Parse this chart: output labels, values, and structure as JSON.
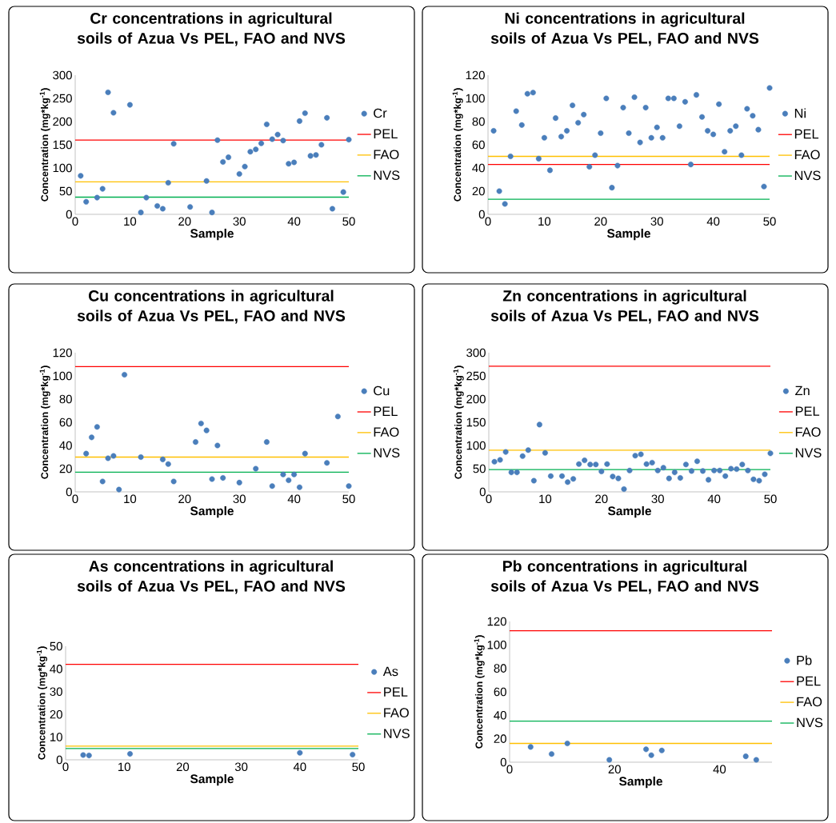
{
  "chart_data": [
    {
      "type": "scatter",
      "title": "Cr concentrations in agricultural soils of Azua Vs PEL, FAO and NVS",
      "xlabel": "Sample",
      "ylabel": "Concentration (mg*kg$^{-1}$)",
      "xlim": [
        0,
        50
      ],
      "xticks": [
        0,
        10,
        20,
        30,
        40,
        50
      ],
      "ylim": [
        0,
        300
      ],
      "yticks": [
        0,
        50,
        100,
        150,
        200,
        250,
        300
      ],
      "legend": "right",
      "marker": "circle",
      "series": [
        {
          "name": "Cr",
          "color": "#4a7ebb",
          "x": [
            1,
            2,
            4,
            5,
            6,
            7,
            10,
            12,
            13,
            15,
            16,
            17,
            18,
            21,
            24,
            25,
            26,
            27,
            28,
            30,
            31,
            32,
            33,
            34,
            35,
            36,
            37,
            38,
            39,
            40,
            41,
            42,
            43,
            44,
            45,
            46,
            47,
            49,
            50
          ],
          "values": [
            83,
            27,
            36,
            55,
            263,
            219,
            236,
            4,
            36,
            18,
            12,
            68,
            152,
            16,
            72,
            4,
            160,
            113,
            123,
            87,
            103,
            135,
            140,
            153,
            194,
            162,
            172,
            159,
            109,
            112,
            201,
            218,
            126,
            128,
            150,
            208,
            12,
            48,
            161
          ]
        }
      ],
      "ref_lines": [
        {
          "axis": "y",
          "value": 160,
          "label": "PEL",
          "color": "#ff0000"
        },
        {
          "axis": "y",
          "value": 70,
          "label": "FAO",
          "color": "#ffc000"
        },
        {
          "axis": "y",
          "value": 37,
          "label": "NVS",
          "color": "#00b050"
        }
      ]
    },
    {
      "type": "scatter",
      "title": "Ni concentrations in agricultural soils of Azua Vs PEL, FAO and NVS",
      "xlabel": "Sample",
      "ylabel": "Concentration (mg*kg$^{-1}$)",
      "xlim": [
        0,
        50
      ],
      "xticks": [
        0,
        10,
        20,
        30,
        40,
        50
      ],
      "ylim": [
        0,
        120
      ],
      "yticks": [
        0,
        20,
        40,
        60,
        80,
        100,
        120
      ],
      "legend": "right",
      "marker": "circle",
      "series": [
        {
          "name": "Ni",
          "color": "#4a7ebb",
          "x": [
            1,
            2,
            3,
            4,
            5,
            6,
            7,
            8,
            9,
            10,
            11,
            12,
            13,
            14,
            15,
            16,
            17,
            18,
            19,
            20,
            21,
            22,
            23,
            24,
            25,
            26,
            27,
            28,
            29,
            30,
            31,
            32,
            33,
            34,
            35,
            36,
            37,
            38,
            39,
            40,
            41,
            42,
            43,
            44,
            45,
            46,
            47,
            48,
            49,
            50
          ],
          "values": [
            72,
            20,
            9,
            50,
            89,
            77,
            104,
            105,
            48,
            66,
            38,
            83,
            67,
            72,
            94,
            79,
            86,
            41,
            51,
            70,
            100,
            23,
            42,
            92,
            70,
            101,
            62,
            92,
            66,
            75,
            66,
            100,
            100,
            76,
            97,
            43,
            103,
            84,
            72,
            69,
            95,
            54,
            72,
            76,
            51,
            91,
            85,
            73,
            24,
            109
          ]
        }
      ],
      "ref_lines": [
        {
          "axis": "y",
          "value": 43,
          "label": "PEL",
          "color": "#ff0000"
        },
        {
          "axis": "y",
          "value": 50,
          "label": "FAO",
          "color": "#ffc000"
        },
        {
          "axis": "y",
          "value": 13,
          "label": "NVS",
          "color": "#00b050"
        }
      ]
    },
    {
      "type": "scatter",
      "title": "Cu concentrations in agricultural soils of Azua Vs PEL, FAO and NVS",
      "xlabel": "Sample",
      "ylabel": "Concentration (mg*kg$^{-1}$)",
      "xlim": [
        0,
        50
      ],
      "xticks": [
        0,
        10,
        20,
        30,
        40,
        50
      ],
      "ylim": [
        0,
        120
      ],
      "yticks": [
        0,
        20,
        40,
        60,
        80,
        100,
        120
      ],
      "legend": "right",
      "marker": "circle",
      "series": [
        {
          "name": "Cu",
          "color": "#4a7ebb",
          "x": [
            2,
            3,
            4,
            5,
            6,
            7,
            8,
            9,
            12,
            16,
            17,
            18,
            22,
            23,
            24,
            25,
            26,
            27,
            30,
            33,
            35,
            36,
            38,
            39,
            40,
            41,
            42,
            46,
            48,
            50
          ],
          "values": [
            33,
            47,
            56,
            9,
            29,
            31,
            2,
            101,
            30,
            28,
            24,
            9,
            43,
            59,
            53,
            11,
            40,
            12,
            8,
            20,
            43,
            5,
            15,
            10,
            15,
            4,
            33,
            25,
            65,
            5
          ]
        }
      ],
      "ref_lines": [
        {
          "axis": "y",
          "value": 108,
          "label": "PEL",
          "color": "#ff0000"
        },
        {
          "axis": "y",
          "value": 30,
          "label": "FAO",
          "color": "#ffc000"
        },
        {
          "axis": "y",
          "value": 17,
          "label": "NVS",
          "color": "#00b050"
        }
      ]
    },
    {
      "type": "scatter",
      "title": "Zn concentrations in agricultural soils of Azua Vs PEL, FAO and NVS",
      "xlabel": "Sample",
      "ylabel": "Concentration (mg*kg$^{-1}$)",
      "xlim": [
        0,
        50
      ],
      "xticks": [
        0,
        10,
        20,
        30,
        40,
        50
      ],
      "ylim": [
        0,
        300
      ],
      "yticks": [
        0,
        50,
        100,
        150,
        200,
        250,
        300
      ],
      "legend": "right",
      "marker": "circle",
      "series": [
        {
          "name": "Zn",
          "color": "#4a7ebb",
          "x": [
            1,
            2,
            3,
            4,
            5,
            6,
            7,
            8,
            9,
            10,
            11,
            13,
            14,
            15,
            16,
            17,
            18,
            19,
            20,
            21,
            22,
            23,
            24,
            25,
            26,
            27,
            28,
            29,
            30,
            31,
            32,
            33,
            34,
            35,
            36,
            37,
            38,
            39,
            40,
            41,
            42,
            43,
            44,
            45,
            46,
            47,
            48,
            49,
            50
          ],
          "values": [
            65,
            69,
            86,
            42,
            42,
            77,
            90,
            24,
            145,
            84,
            34,
            34,
            21,
            28,
            60,
            68,
            59,
            59,
            44,
            60,
            33,
            29,
            6,
            46,
            78,
            81,
            60,
            63,
            46,
            52,
            29,
            42,
            30,
            59,
            45,
            66,
            45,
            26,
            46,
            46,
            34,
            50,
            49,
            59,
            46,
            27,
            24,
            38,
            83
          ]
        }
      ],
      "ref_lines": [
        {
          "axis": "y",
          "value": 271,
          "label": "PEL",
          "color": "#ff0000"
        },
        {
          "axis": "y",
          "value": 90,
          "label": "FAO",
          "color": "#ffc000"
        },
        {
          "axis": "y",
          "value": 48,
          "label": "NVS",
          "color": "#00b050"
        }
      ]
    },
    {
      "type": "scatter",
      "title": "As concentrations in agricultural soils of Azua Vs PEL, FAO and NVS",
      "xlabel": "Sample",
      "ylabel": "Concentration (mg*kg$^{-1}$)",
      "xlim": [
        0,
        50
      ],
      "xticks": [
        0,
        10,
        20,
        30,
        40,
        50
      ],
      "ylim": [
        0,
        50
      ],
      "yticks": [
        0,
        10,
        20,
        30,
        40,
        50
      ],
      "legend": "right",
      "marker": "circle",
      "series": [
        {
          "name": "As",
          "color": "#4a7ebb",
          "x": [
            3,
            4,
            11,
            40,
            49
          ],
          "values": [
            2.1,
            1.9,
            2.6,
            3.1,
            2.3
          ]
        }
      ],
      "ref_lines": [
        {
          "axis": "y",
          "value": 42,
          "label": "PEL",
          "color": "#ff0000"
        },
        {
          "axis": "y",
          "value": 6,
          "label": "FAO",
          "color": "#ffc000"
        },
        {
          "axis": "y",
          "value": 5,
          "label": "NVS",
          "color": "#00b050"
        }
      ]
    },
    {
      "type": "scatter",
      "title": "Pb concentrations in agricultural soils of Azua Vs PEL, FAO and NVS",
      "xlabel": "Sample",
      "ylabel": "Concentration (mg*kg$^{-1}$)",
      "xlim": [
        0,
        50
      ],
      "xticks": [
        0,
        20,
        40
      ],
      "ylim": [
        0,
        120
      ],
      "yticks": [
        0,
        20,
        40,
        60,
        80,
        100,
        120
      ],
      "legend": "right",
      "marker": "circle",
      "series": [
        {
          "name": "Pb",
          "color": "#4a7ebb",
          "x": [
            4,
            8,
            11,
            19,
            26,
            27,
            29,
            45,
            47
          ],
          "values": [
            13,
            7,
            16,
            2,
            11,
            6,
            10,
            5,
            2
          ]
        }
      ],
      "ref_lines": [
        {
          "axis": "y",
          "value": 112,
          "label": "PEL",
          "color": "#ff0000"
        },
        {
          "axis": "y",
          "value": 16,
          "label": "FAO",
          "color": "#ffc000"
        },
        {
          "axis": "y",
          "value": 35,
          "label": "NVS",
          "color": "#00b050"
        }
      ]
    }
  ]
}
